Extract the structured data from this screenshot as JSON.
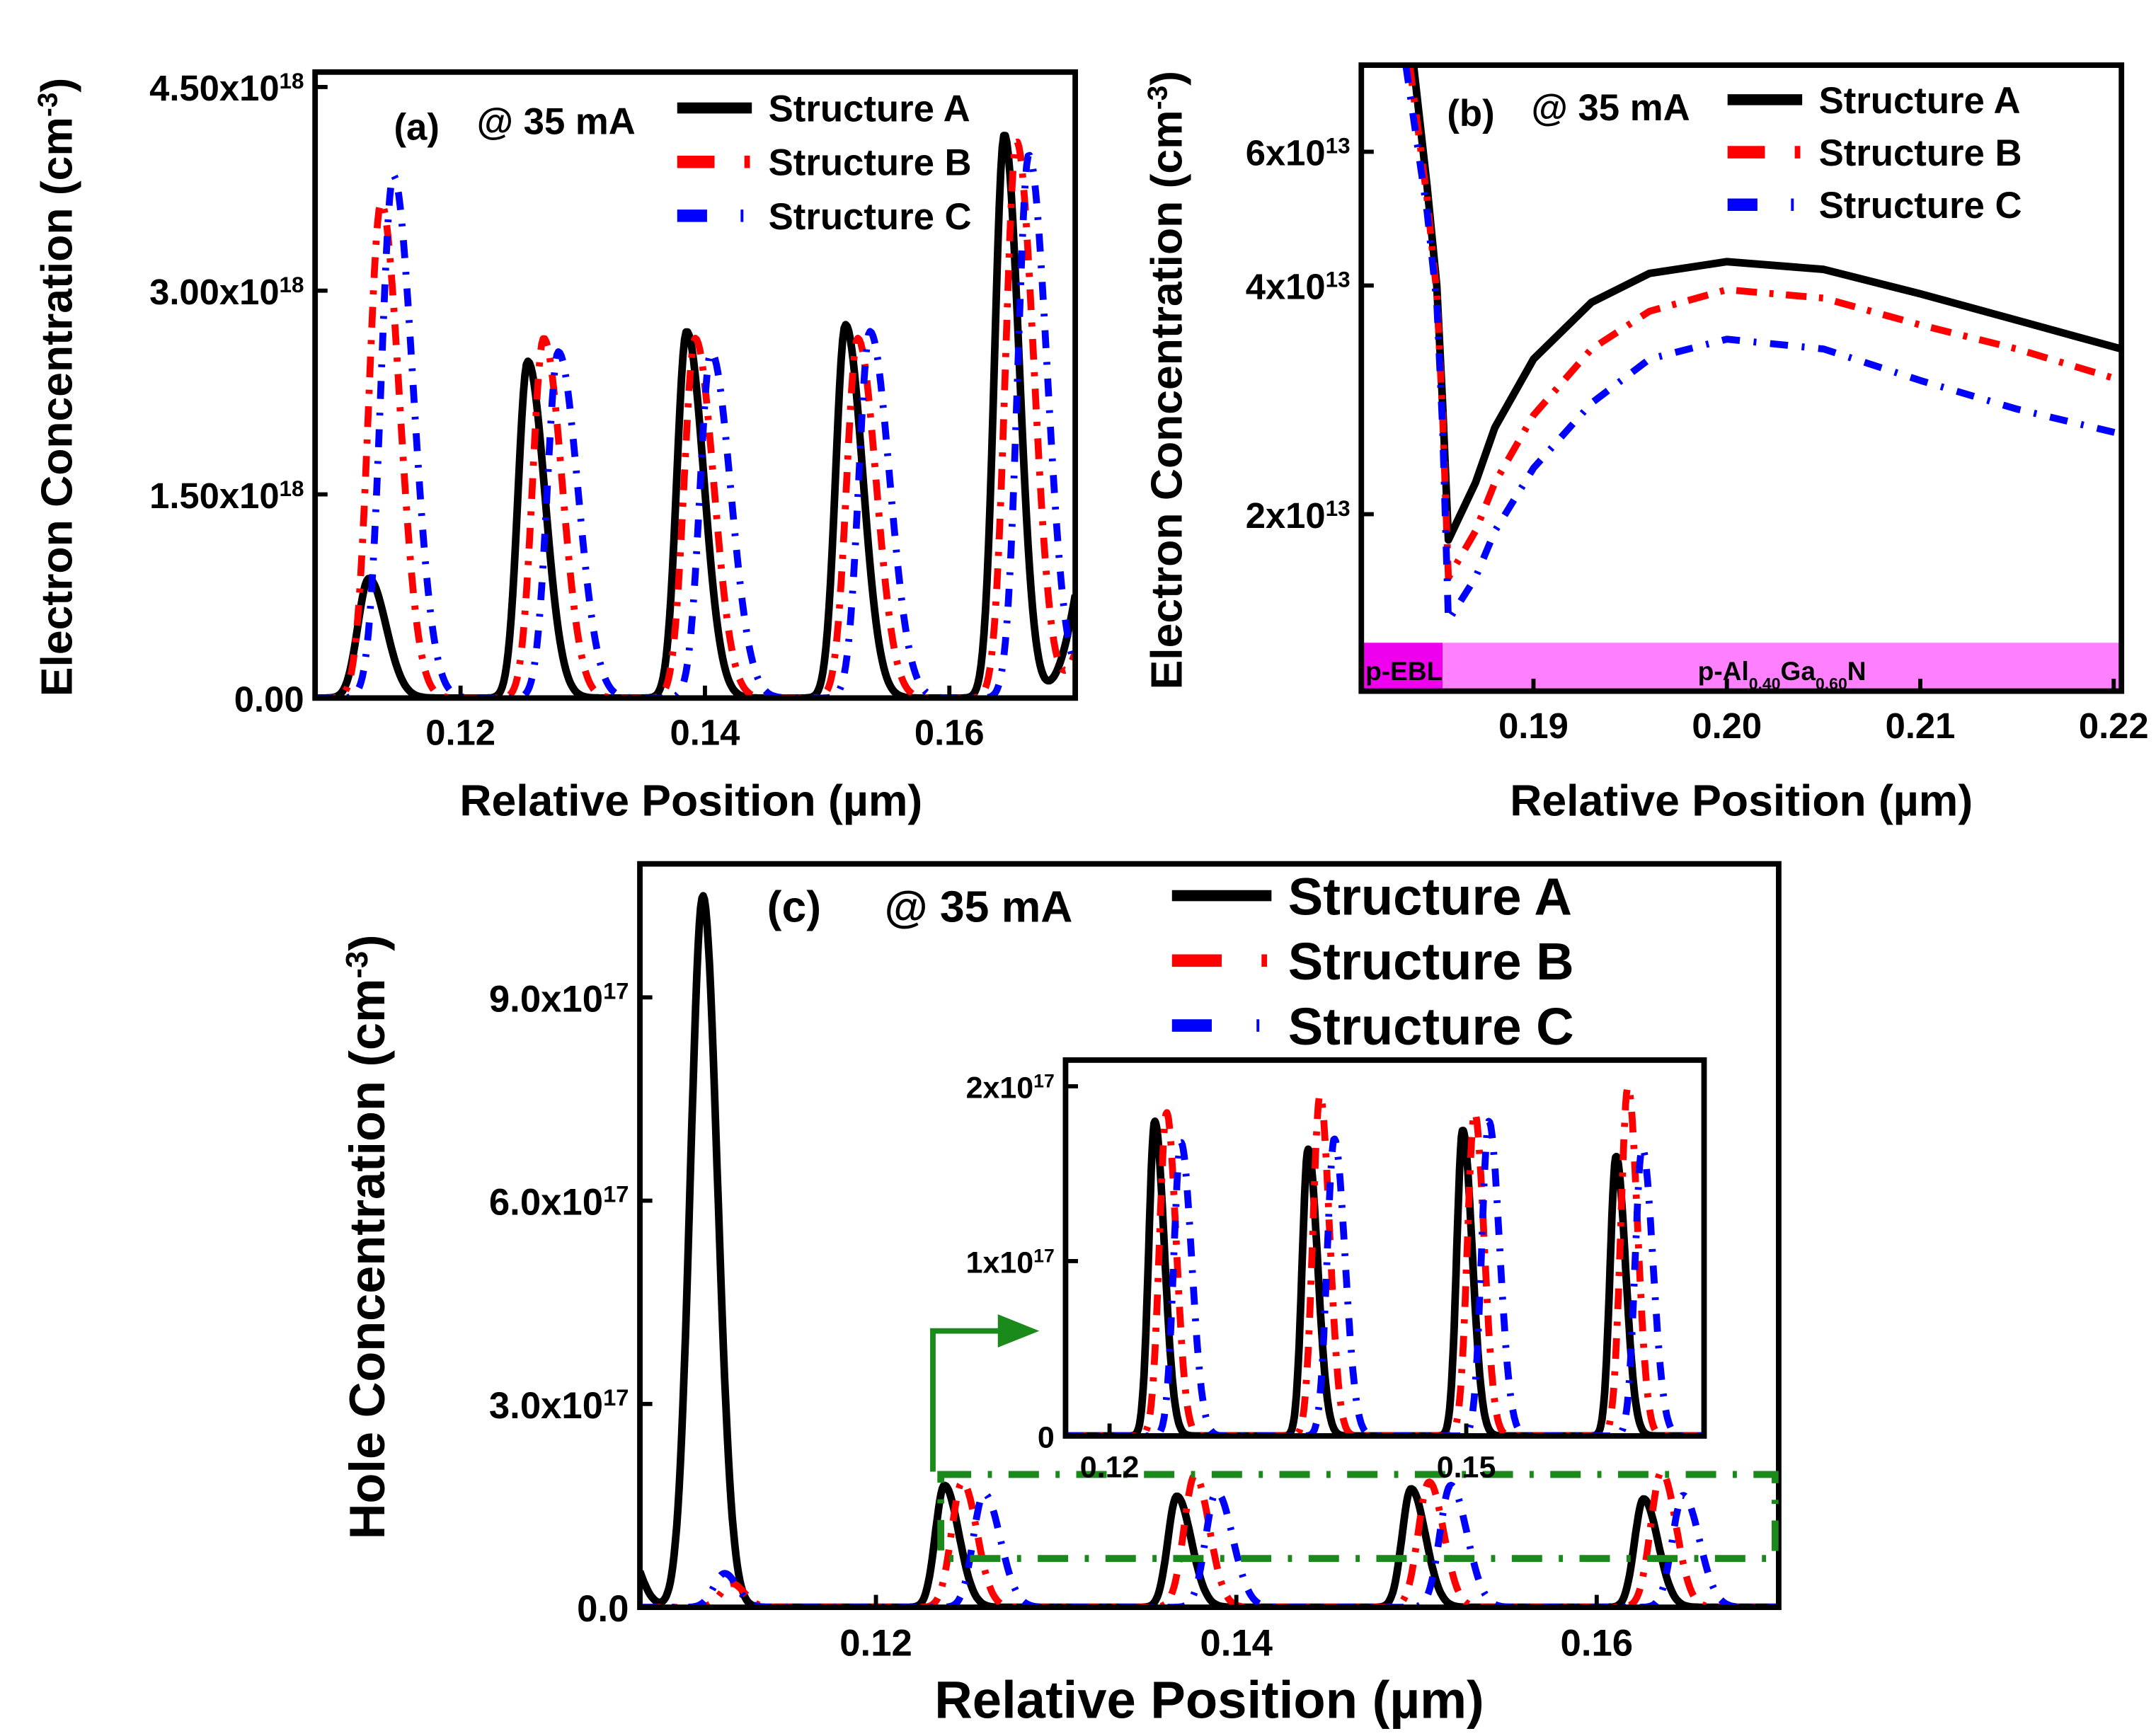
{
  "colors": {
    "A": "#000000",
    "B": "#ff0000",
    "C": "#0000ff",
    "zoom_box": "#1a8a1a",
    "ebl_band": "#ee00ee",
    "algan_band": "#ff80ff"
  },
  "chart_data": [
    {
      "id": "a",
      "type": "line",
      "title": "(a)",
      "annotation": "@ 35 mA",
      "xlabel": "Relative Position (µm)",
      "ylabel": [
        {
          "t": "Electron Concentration (cm"
        },
        {
          "t": "-3",
          "sup": true
        },
        {
          "t": ")"
        }
      ],
      "xlim": [
        0.1081,
        0.1703
      ],
      "ylim": [
        0,
        4.61e+18
      ],
      "yscale": "linear",
      "xticks": [
        {
          "v": 0.12,
          "label": "0.12"
        },
        {
          "v": 0.14,
          "label": "0.14"
        },
        {
          "v": 0.16,
          "label": "0.16"
        }
      ],
      "yticks": [
        {
          "v": 0,
          "mant": "0.00",
          "exp": ""
        },
        {
          "v": 1.5e+18,
          "mant": "1.50x10",
          "exp": "18"
        },
        {
          "v": 3e+18,
          "mant": "3.00x10",
          "exp": "18"
        },
        {
          "v": 4.5e+18,
          "mant": "4.50x10",
          "exp": "18"
        }
      ],
      "legend": "top-right",
      "series": [
        {
          "name": "Structure A",
          "key": "A",
          "peaks": [
            [
              0.1125,
              8.8e+17,
              0.0009,
              0.0014
            ],
            [
              0.1255,
              2.48e+18,
              0.0008,
              0.0014
            ],
            [
              0.1385,
              2.7e+18,
              0.0008,
              0.0014
            ],
            [
              0.1515,
              2.75e+18,
              0.0008,
              0.0014
            ],
            [
              0.1645,
              4.15e+18,
              0.0008,
              0.0012
            ],
            [
              0.1725,
              1.6e+18,
              0.0018,
              0.002
            ]
          ]
        },
        {
          "name": "Structure B",
          "key": "B",
          "peaks": [
            [
              0.1135,
              3.65e+18,
              0.001,
              0.0015
            ],
            [
              0.1268,
              2.65e+18,
              0.0009,
              0.0015
            ],
            [
              0.1392,
              2.65e+18,
              0.0009,
              0.0015
            ],
            [
              0.1525,
              2.65e+18,
              0.0009,
              0.0015
            ],
            [
              0.1655,
              4.1e+18,
              0.0009,
              0.0014
            ],
            [
              0.1735,
              1.6e+18,
              0.0018,
              0.002
            ]
          ]
        },
        {
          "name": "Structure C",
          "key": "C",
          "peaks": [
            [
              0.1145,
              3.85e+18,
              0.001,
              0.0016
            ],
            [
              0.128,
              2.55e+18,
              0.0009,
              0.0016
            ],
            [
              0.1405,
              2.55e+18,
              0.0009,
              0.0016
            ],
            [
              0.1535,
              2.7e+18,
              0.0009,
              0.0016
            ],
            [
              0.1665,
              4e+18,
              0.0009,
              0.0015
            ],
            [
              0.1745,
              1.4e+18,
              0.0018,
              0.002
            ]
          ]
        }
      ]
    },
    {
      "id": "b",
      "type": "line",
      "title": "(b)",
      "annotation": "@ 35 mA",
      "xlabel": "Relative Position (µm)",
      "ylabel": [
        {
          "t": "Electron Concentration (cm"
        },
        {
          "t": "-3",
          "sup": true
        },
        {
          "t": ")"
        }
      ],
      "xlim": [
        0.1811,
        0.2204
      ],
      "ylim": [
        11700000000000.0,
        78000000000000.0
      ],
      "yscale": "log",
      "xticks": [
        {
          "v": 0.19,
          "label": "0.19"
        },
        {
          "v": 0.2,
          "label": "0.20"
        },
        {
          "v": 0.21,
          "label": "0.21"
        },
        {
          "v": 0.22,
          "label": "0.22"
        }
      ],
      "yticks": [
        {
          "v": 20000000000000.0,
          "mant": "2x10",
          "exp": "13"
        },
        {
          "v": 40000000000000.0,
          "mant": "4x10",
          "exp": "13"
        },
        {
          "v": 60000000000000.0,
          "mant": "6x10",
          "exp": "13"
        }
      ],
      "regions": [
        {
          "label": [
            {
              "t": "p-EBL"
            }
          ],
          "x0": 0.1811,
          "x1": 0.1853,
          "color_key": "ebl_band"
        },
        {
          "label": [
            {
              "t": "p-Al"
            },
            {
              "t": "0.40",
              "sub": true
            },
            {
              "t": "Ga"
            },
            {
              "t": "0.60",
              "sub": true
            },
            {
              "t": "N"
            }
          ],
          "x0": 0.1853,
          "x1": 0.2204,
          "color_key": "algan_band"
        }
      ],
      "legend": "top-right",
      "series": [
        {
          "name": "Structure A",
          "key": "A",
          "x": [
            0.1838,
            0.1845,
            0.185,
            0.1853,
            0.1856,
            0.187,
            0.188,
            0.19,
            0.193,
            0.196,
            0.2,
            0.205,
            0.21,
            0.215,
            0.2204
          ],
          "y": [
            78000000000000.0,
            54000000000000.0,
            40000000000000.0,
            28000000000000.0,
            18500000000000.0,
            22000000000000.0,
            26000000000000.0,
            32000000000000.0,
            38000000000000.0,
            41500000000000.0,
            43000000000000.0,
            42000000000000.0,
            39000000000000.0,
            36000000000000.0,
            33000000000000.0
          ]
        },
        {
          "name": "Structure B",
          "key": "B",
          "x": [
            0.1836,
            0.1845,
            0.185,
            0.1853,
            0.1856,
            0.187,
            0.188,
            0.19,
            0.193,
            0.196,
            0.2,
            0.205,
            0.21,
            0.215,
            0.2204
          ],
          "y": [
            78000000000000.0,
            52000000000000.0,
            39000000000000.0,
            27000000000000.0,
            16500000000000.0,
            19000000000000.0,
            22000000000000.0,
            27000000000000.0,
            33000000000000.0,
            37000000000000.0,
            39500000000000.0,
            38500000000000.0,
            35500000000000.0,
            33000000000000.0,
            30000000000000.0
          ]
        },
        {
          "name": "Structure C",
          "key": "C",
          "x": [
            0.1834,
            0.1845,
            0.185,
            0.1853,
            0.1856,
            0.187,
            0.188,
            0.19,
            0.193,
            0.196,
            0.2,
            0.205,
            0.21,
            0.215,
            0.2204
          ],
          "y": [
            78000000000000.0,
            50000000000000.0,
            38000000000000.0,
            26000000000000.0,
            14500000000000.0,
            16500000000000.0,
            19000000000000.0,
            23000000000000.0,
            28000000000000.0,
            32000000000000.0,
            34000000000000.0,
            33000000000000.0,
            30000000000000.0,
            27500000000000.0,
            25500000000000.0
          ]
        }
      ]
    },
    {
      "id": "c",
      "type": "line",
      "title": "(c)",
      "annotation": "@ 35 mA",
      "xlabel": "Relative Position (µm)",
      "ylabel": [
        {
          "t": "Hole Concentration (cm"
        },
        {
          "t": "-3",
          "sup": true
        },
        {
          "t": ")"
        }
      ],
      "xlim": [
        0.1069,
        0.1701
      ],
      "ylim": [
        0,
        1.097e+18
      ],
      "yscale": "linear",
      "xticks": [
        {
          "v": 0.12,
          "label": "0.12"
        },
        {
          "v": 0.14,
          "label": "0.14"
        },
        {
          "v": 0.16,
          "label": "0.16"
        }
      ],
      "yticks": [
        {
          "v": 0,
          "mant": "0.0",
          "exp": ""
        },
        {
          "v": 3e+17,
          "mant": "3.0x10",
          "exp": "17"
        },
        {
          "v": 6e+17,
          "mant": "6.0x10",
          "exp": "17"
        },
        {
          "v": 9e+17,
          "mant": "9.0x10",
          "exp": "17"
        }
      ],
      "zoom_region": {
        "x": [
          0.1236,
          0.1699
        ],
        "y": [
          7.2e+16,
          1.96e+17
        ]
      },
      "legend": "top-right",
      "series": [
        {
          "name": "Structure A",
          "key": "A",
          "peaks": [
            [
              0.106,
              1e+17,
              0.0012,
              0.0008
            ],
            [
              0.1104,
              1.05e+18,
              0.0007,
              0.0008
            ],
            [
              0.1238,
              1.8e+17,
              0.0005,
              0.0008
            ],
            [
              0.1367,
              1.64e+17,
              0.0005,
              0.0008
            ],
            [
              0.1497,
              1.75e+17,
              0.0005,
              0.0008
            ],
            [
              0.1626,
              1.6e+17,
              0.0005,
              0.0008
            ]
          ]
        },
        {
          "name": "Structure B",
          "key": "B",
          "peaks": [
            [
              0.112,
              3.5e+16,
              0.0006,
              0.0007
            ],
            [
              0.1248,
              1.85e+17,
              0.0006,
              0.0008
            ],
            [
              0.1377,
              1.95e+17,
              0.0006,
              0.0008
            ],
            [
              0.1507,
              1.85e+17,
              0.0006,
              0.0008
            ],
            [
              0.1636,
              2e+17,
              0.0006,
              0.0008
            ]
          ]
        },
        {
          "name": "Structure C",
          "key": "C",
          "peaks": [
            [
              0.1116,
              5e+16,
              0.0006,
              0.0007
            ],
            [
              0.126,
              1.68e+17,
              0.0006,
              0.0009
            ],
            [
              0.1389,
              1.7e+17,
              0.0006,
              0.0009
            ],
            [
              0.1519,
              1.8e+17,
              0.0006,
              0.0009
            ],
            [
              0.1648,
              1.65e+17,
              0.0006,
              0.0009
            ]
          ]
        }
      ],
      "inset": {
        "xlim": [
          0.1163,
          0.17
        ],
        "ylim": [
          0,
          2.15e+17
        ],
        "xticks": [
          {
            "v": 0.12,
            "label": "0.12"
          },
          {
            "v": 0.15,
            "label": "0.15"
          }
        ],
        "yticks": [
          {
            "v": 0,
            "mant": "0",
            "exp": ""
          },
          {
            "v": 1e+17,
            "mant": "1x10",
            "exp": "17"
          },
          {
            "v": 2e+17,
            "mant": "2x10",
            "exp": "17"
          }
        ]
      }
    }
  ]
}
